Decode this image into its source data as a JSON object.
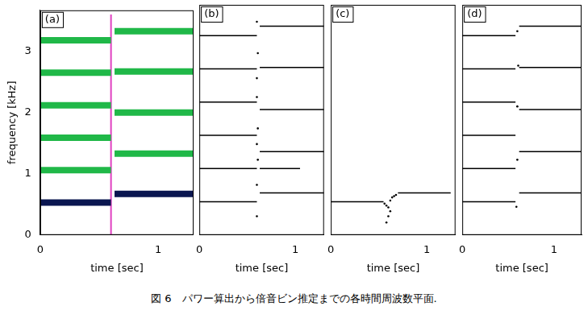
{
  "chart_data": [
    {
      "type": "line",
      "title": "(a)",
      "x_label": "time [sec]",
      "y_label": "frequency [kHz]",
      "xlim": [
        0,
        1.3
      ],
      "ylim": [
        0,
        3.67
      ],
      "xticks": [
        0,
        1
      ],
      "yticks": [
        0,
        1,
        2,
        3
      ],
      "series": [
        {
          "color": "#0a1650",
          "x": [
            0,
            0.6
          ],
          "values": [
            0.53,
            0.53
          ]
        },
        {
          "color": "#20b848",
          "x": [
            0,
            0.6
          ],
          "values": [
            1.06,
            1.06
          ]
        },
        {
          "color": "#20b848",
          "x": [
            0,
            0.6
          ],
          "values": [
            1.59,
            1.59
          ]
        },
        {
          "color": "#20b848",
          "x": [
            0,
            0.6
          ],
          "values": [
            2.12,
            2.12
          ]
        },
        {
          "color": "#20b848",
          "x": [
            0,
            0.6
          ],
          "values": [
            2.65,
            2.65
          ]
        },
        {
          "color": "#20b848",
          "x": [
            0,
            0.6
          ],
          "values": [
            3.18,
            3.18
          ]
        },
        {
          "color": "#0a1650",
          "x": [
            0.63,
            1.3
          ],
          "values": [
            0.67,
            0.67
          ]
        },
        {
          "color": "#20b848",
          "x": [
            0.63,
            1.3
          ],
          "values": [
            1.33,
            1.33
          ]
        },
        {
          "color": "#20b848",
          "x": [
            0.63,
            1.3
          ],
          "values": [
            2.0,
            2.0
          ]
        },
        {
          "color": "#20b848",
          "x": [
            0.63,
            1.3
          ],
          "values": [
            2.67,
            2.67
          ]
        },
        {
          "color": "#20b848",
          "x": [
            0.63,
            1.3
          ],
          "values": [
            3.33,
            3.33
          ]
        },
        {
          "color": "#e040c0",
          "x": [
            0.6,
            0.6
          ],
          "values": [
            0,
            3.6
          ]
        }
      ]
    },
    {
      "type": "line",
      "title": "(b)",
      "x_label": "time [sec]",
      "tick_labels": "x",
      "xlim": [
        0,
        1.3
      ],
      "ylim": [
        0,
        3.67
      ],
      "xticks": [
        0,
        1
      ],
      "yticks": [
        0,
        1,
        2,
        3
      ],
      "series": [
        {
          "color": "#000000",
          "x": [
            0,
            0.6
          ],
          "values": [
            0.53,
            0.53
          ]
        },
        {
          "color": "#000000",
          "x": [
            0,
            0.6
          ],
          "values": [
            1.06,
            1.06
          ]
        },
        {
          "color": "#000000",
          "x": [
            0,
            0.6
          ],
          "values": [
            1.59,
            1.59
          ]
        },
        {
          "color": "#000000",
          "x": [
            0,
            0.6
          ],
          "values": [
            2.12,
            2.12
          ]
        },
        {
          "color": "#000000",
          "x": [
            0,
            0.6
          ],
          "values": [
            2.65,
            2.65
          ]
        },
        {
          "color": "#000000",
          "x": [
            0,
            0.6
          ],
          "values": [
            3.18,
            3.18
          ]
        },
        {
          "color": "#000000",
          "x": [
            0.63,
            1.05
          ],
          "values": [
            1.06,
            1.06
          ]
        },
        {
          "color": "#000000",
          "x": [
            0.63,
            1.3
          ],
          "values": [
            0.67,
            0.67
          ]
        },
        {
          "color": "#000000",
          "x": [
            0.63,
            1.3
          ],
          "values": [
            1.33,
            1.33
          ]
        },
        {
          "color": "#000000",
          "x": [
            0.63,
            1.3
          ],
          "values": [
            2.0,
            2.0
          ]
        },
        {
          "color": "#000000",
          "x": [
            0.63,
            1.3
          ],
          "values": [
            2.67,
            2.67
          ]
        },
        {
          "color": "#000000",
          "x": [
            0.63,
            1.3
          ],
          "values": [
            3.33,
            3.33
          ]
        },
        {
          "color": "#000000",
          "marker": "dot",
          "x": [
            0.6,
            0.6,
            0.61,
            0.6,
            0.61,
            0.6,
            0.6,
            0.61,
            0.6
          ],
          "values": [
            0.3,
            0.8,
            1.2,
            1.45,
            1.7,
            2.2,
            2.5,
            2.9,
            3.4
          ]
        }
      ]
    },
    {
      "type": "line",
      "title": "(c)",
      "x_label": "time [sec]",
      "tick_labels": "x",
      "xlim": [
        0,
        1.3
      ],
      "ylim": [
        0,
        3.67
      ],
      "xticks": [
        0,
        1
      ],
      "yticks": [
        0,
        1,
        2,
        3
      ],
      "series": [
        {
          "color": "#000000",
          "x": [
            0,
            0.55
          ],
          "values": [
            0.53,
            0.53
          ]
        },
        {
          "color": "#000000",
          "x": [
            0.7,
            1.25
          ],
          "values": [
            0.67,
            0.67
          ]
        },
        {
          "color": "#000000",
          "marker": "dot",
          "x": [
            0.56,
            0.58,
            0.6,
            0.62,
            0.64,
            0.66,
            0.68,
            0.6,
            0.58,
            0.62
          ],
          "values": [
            0.5,
            0.47,
            0.44,
            0.55,
            0.6,
            0.62,
            0.64,
            0.3,
            0.2,
            0.38
          ]
        }
      ]
    },
    {
      "type": "line",
      "title": "(d)",
      "x_label": "time [sec]",
      "tick_labels": "x",
      "xlim": [
        0,
        1.3
      ],
      "ylim": [
        0,
        3.67
      ],
      "xticks": [
        0,
        1
      ],
      "yticks": [
        0,
        1,
        2,
        3
      ],
      "series": [
        {
          "color": "#000000",
          "x": [
            0,
            0.58
          ],
          "values": [
            0.53,
            0.53
          ]
        },
        {
          "color": "#000000",
          "x": [
            0,
            0.58
          ],
          "values": [
            1.06,
            1.06
          ]
        },
        {
          "color": "#000000",
          "x": [
            0,
            0.58
          ],
          "values": [
            1.59,
            1.59
          ]
        },
        {
          "color": "#000000",
          "x": [
            0,
            0.58
          ],
          "values": [
            2.12,
            2.12
          ]
        },
        {
          "color": "#000000",
          "x": [
            0,
            0.58
          ],
          "values": [
            2.65,
            2.65
          ]
        },
        {
          "color": "#000000",
          "x": [
            0,
            0.58
          ],
          "values": [
            3.18,
            3.18
          ]
        },
        {
          "color": "#000000",
          "x": [
            0.62,
            1.3
          ],
          "values": [
            0.67,
            0.67
          ]
        },
        {
          "color": "#000000",
          "x": [
            0.62,
            1.3
          ],
          "values": [
            1.33,
            1.33
          ]
        },
        {
          "color": "#000000",
          "x": [
            0.62,
            1.3
          ],
          "values": [
            2.0,
            2.0
          ]
        },
        {
          "color": "#000000",
          "x": [
            0.62,
            1.3
          ],
          "values": [
            2.67,
            2.67
          ]
        },
        {
          "color": "#000000",
          "x": [
            0.62,
            1.3
          ],
          "values": [
            3.33,
            3.33
          ]
        },
        {
          "color": "#000000",
          "marker": "dot",
          "x": [
            0.59,
            0.6,
            0.6,
            0.61,
            0.6
          ],
          "values": [
            0.45,
            1.2,
            2.05,
            2.7,
            3.25
          ]
        }
      ]
    }
  ],
  "caption": "図 6　パワー算出から倍音ビン推定までの各時間周波数平面."
}
